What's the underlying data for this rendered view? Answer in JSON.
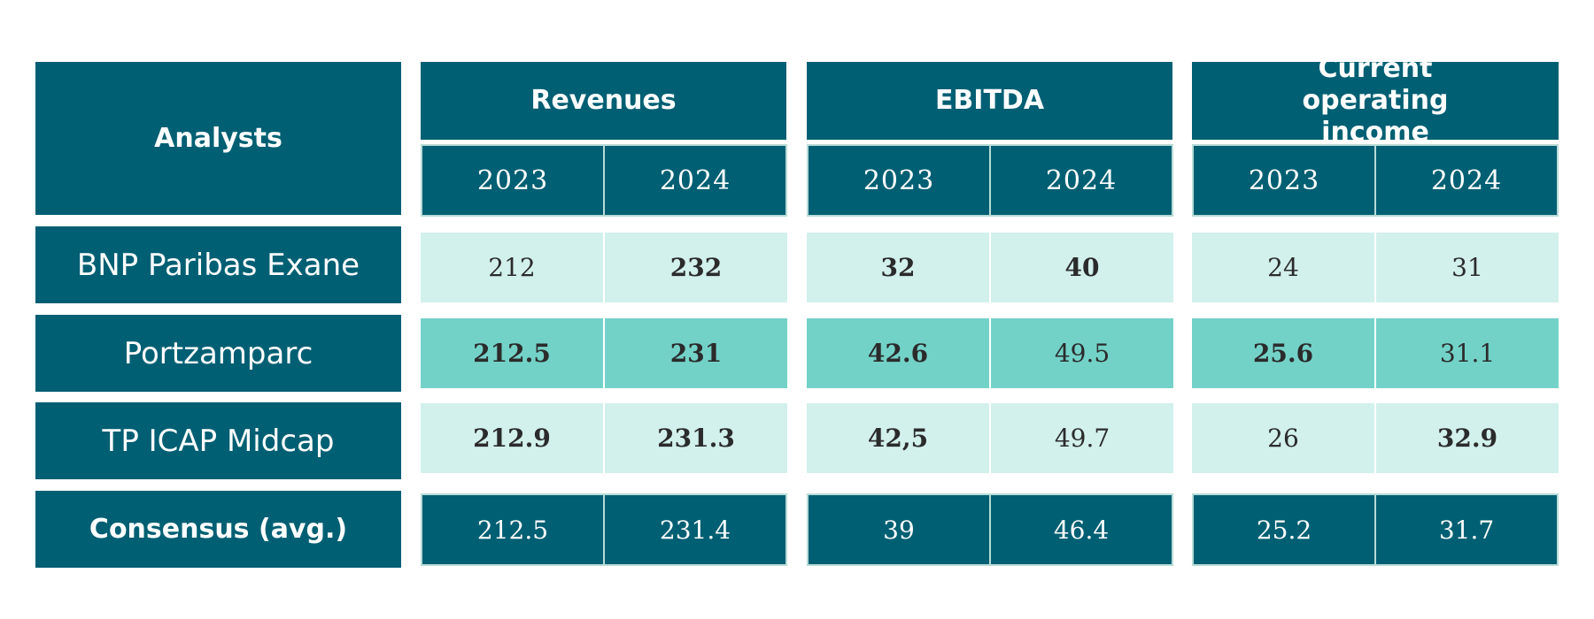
{
  "headers": {
    "analysts": "Analysts",
    "groups": [
      "Revenues",
      "EBITDA",
      "Current operating income"
    ],
    "years": [
      "2023",
      "2024"
    ]
  },
  "rows": [
    {
      "label": "BNP Paribas Exane",
      "values": [
        "212",
        "232",
        "32",
        "40",
        "24",
        "31"
      ],
      "bold": [
        false,
        true,
        true,
        true,
        false,
        false
      ]
    },
    {
      "label": "Portzamparc",
      "values": [
        "212.5",
        "231",
        "42.6",
        "49.5",
        "25.6",
        "31.1"
      ],
      "bold": [
        true,
        true,
        true,
        false,
        true,
        false
      ]
    },
    {
      "label": "TP ICAP Midcap",
      "values": [
        "212.9",
        "231.3",
        "42,5",
        "49.7",
        "26",
        "32.9"
      ],
      "bold": [
        true,
        true,
        true,
        false,
        false,
        true
      ]
    },
    {
      "label": "Consensus (avg.)",
      "values": [
        "212.5",
        "231.4",
        "39",
        "46.4",
        "25.2",
        "31.7"
      ],
      "bold": [
        false,
        false,
        false,
        false,
        false,
        false
      ]
    }
  ],
  "colors": {
    "dark": "#005f73",
    "light": "#d2f0ec",
    "mid": "#73d2c8"
  }
}
